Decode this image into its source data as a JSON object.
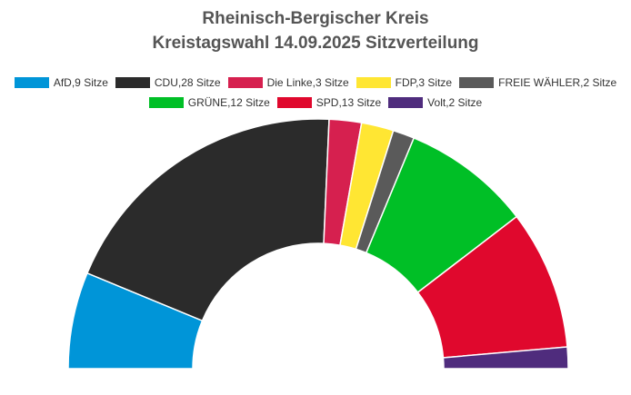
{
  "chart_data": {
    "type": "pie",
    "subtype": "parliament-semicircle",
    "title": "Rheinisch-Bergischer Kreis",
    "subtitle": "Kreistagswahl 14.09.2025 Sitzverteilung",
    "legend_position": "top",
    "slices": [
      {
        "party": "AfD",
        "seats": 9,
        "color": "#0095d8",
        "legend_label": "AfD,9 Sitze"
      },
      {
        "party": "CDU",
        "seats": 28,
        "color": "#2b2b2b",
        "legend_label": "CDU,28 Sitze"
      },
      {
        "party": "Die Linke",
        "seats": 3,
        "color": "#d6204f",
        "legend_label": "Die Linke,3 Sitze"
      },
      {
        "party": "FDP",
        "seats": 3,
        "color": "#ffe633",
        "legend_label": "FDP,3 Sitze"
      },
      {
        "party": "FREIE WÄHLER",
        "seats": 2,
        "color": "#5a5a5a",
        "legend_label": "FREIE WÄHLER,2 Sitze"
      },
      {
        "party": "GRÜNE",
        "seats": 12,
        "color": "#00bf26",
        "legend_label": "GRÜNE,12 Sitze"
      },
      {
        "party": "SPD",
        "seats": 13,
        "color": "#e0082d",
        "legend_label": "SPD,13 Sitze"
      },
      {
        "party": "Volt",
        "seats": 2,
        "color": "#4f2c7d",
        "legend_label": "Volt,2 Sitze"
      }
    ]
  }
}
